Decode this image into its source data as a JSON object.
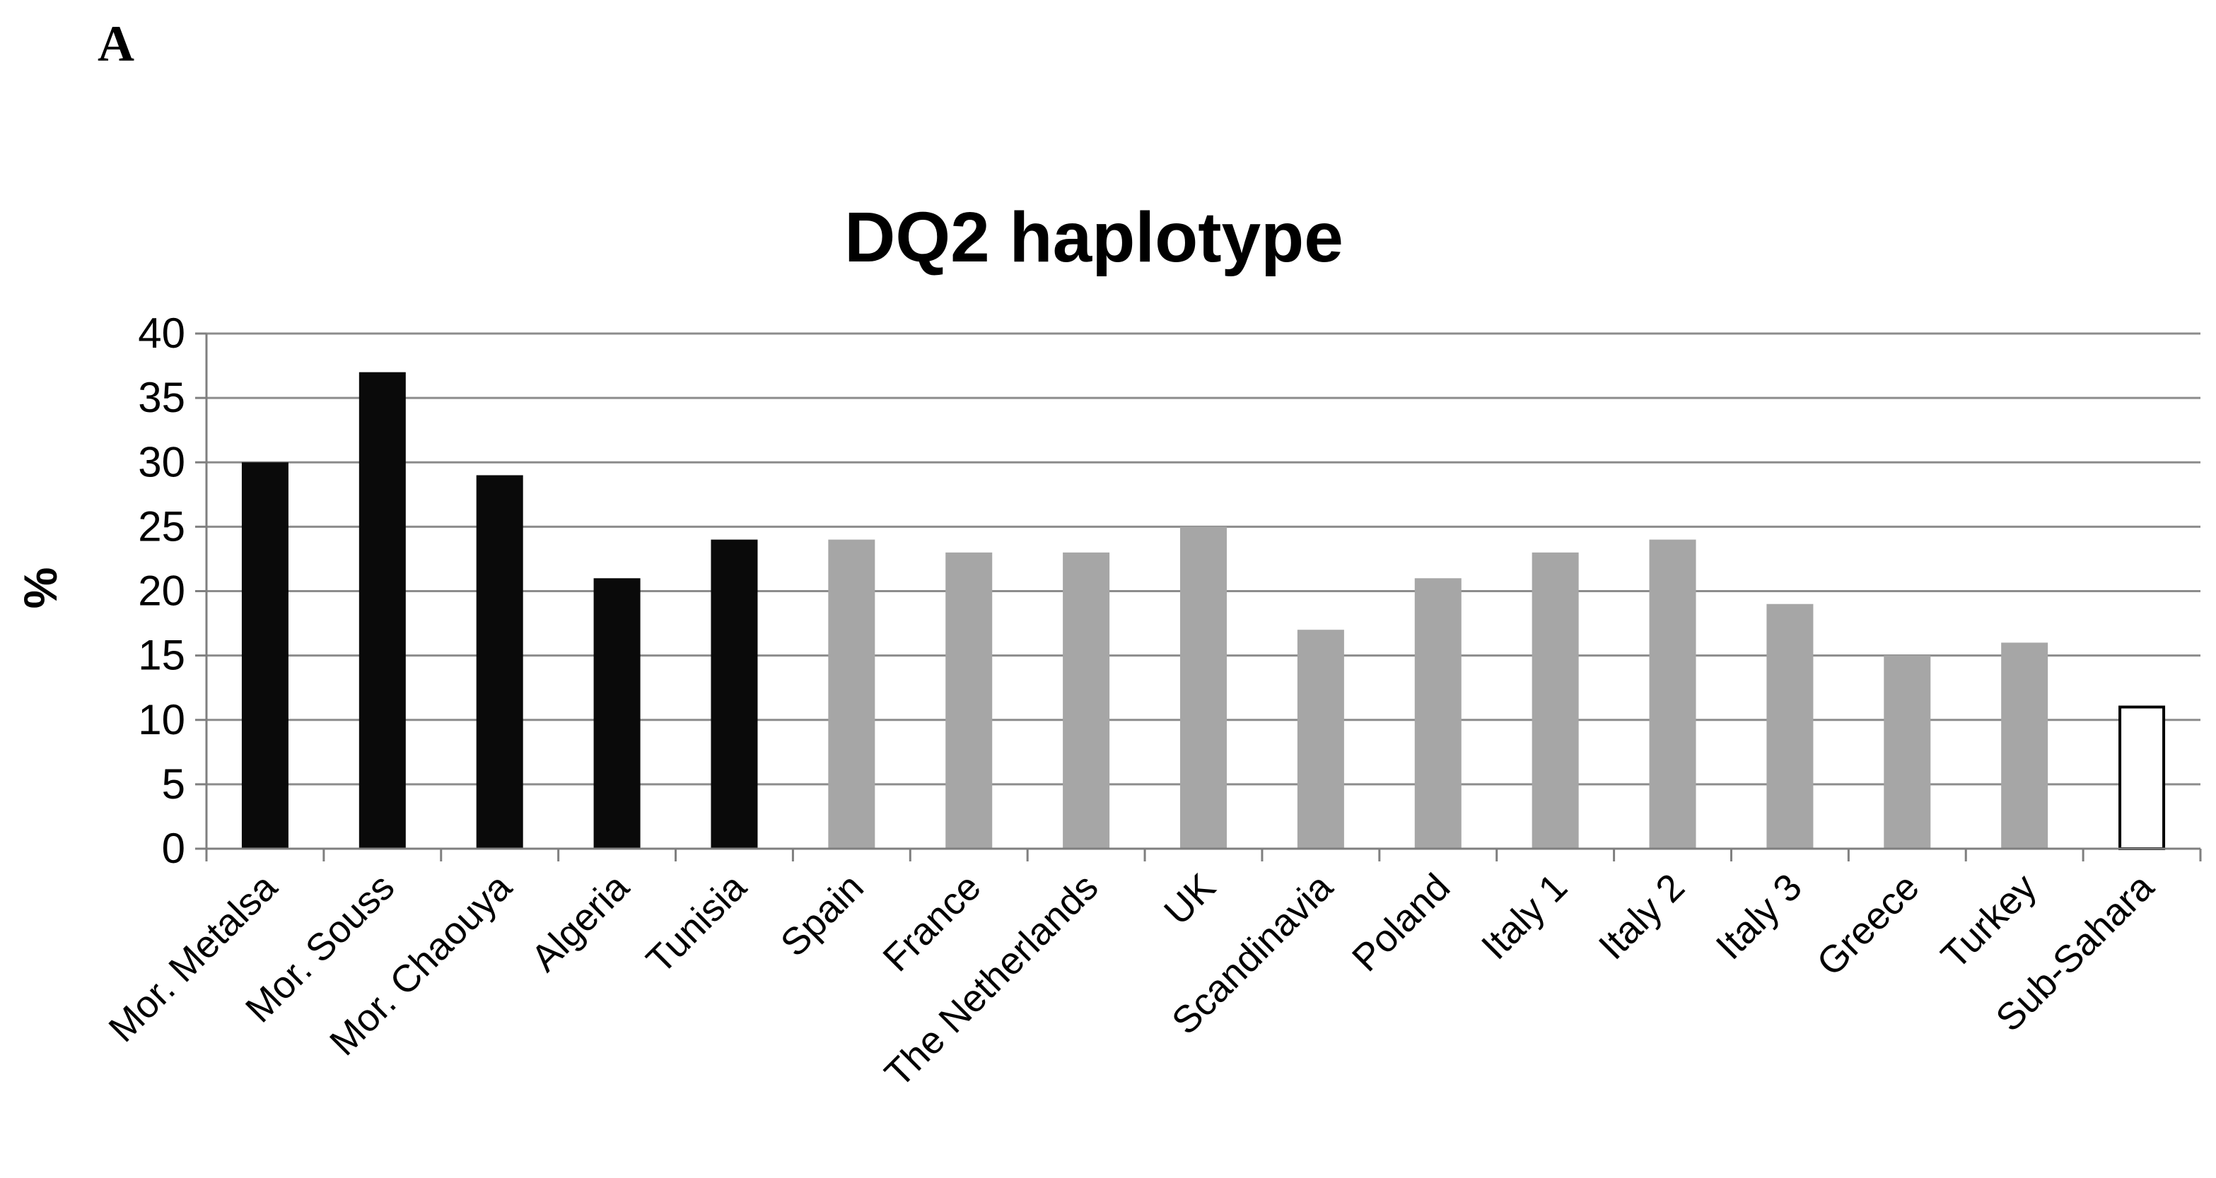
{
  "panel_label": "A",
  "chart_data": {
    "type": "bar",
    "title": "DQ2 haplotype",
    "xlabel": "",
    "ylabel": "%",
    "ylim": [
      0,
      40
    ],
    "yticks": [
      0,
      5,
      10,
      15,
      20,
      25,
      30,
      35,
      40
    ],
    "grid": true,
    "legend": "none",
    "categories": [
      "Mor. Metalsa",
      "Mor. Souss",
      "Mor. Chaouya",
      "Algeria",
      "Tunisia",
      "Spain",
      "France",
      "The Netherlands",
      "UK",
      "Scandinavia",
      "Poland",
      "Italy 1",
      "Italy 2",
      "Italy 3",
      "Greece",
      "Turkey",
      "Sub-Sahara"
    ],
    "values": [
      30,
      37,
      29,
      21,
      24,
      24,
      23,
      23,
      25,
      17,
      21,
      23,
      24,
      19,
      15,
      16,
      11
    ],
    "bar_groups": [
      "north-africa",
      "north-africa",
      "north-africa",
      "north-africa",
      "north-africa",
      "europe",
      "europe",
      "europe",
      "europe",
      "europe",
      "europe",
      "europe",
      "europe",
      "europe",
      "europe",
      "europe",
      "sub-sahara"
    ],
    "colors": {
      "north-africa": "#0a0a0a",
      "europe": "#a6a6a6",
      "sub-sahara": "#ffffff",
      "sub-sahara-outline": "#000000",
      "gridline": "#8c8c8c",
      "axis": "#7f7f7f"
    }
  }
}
